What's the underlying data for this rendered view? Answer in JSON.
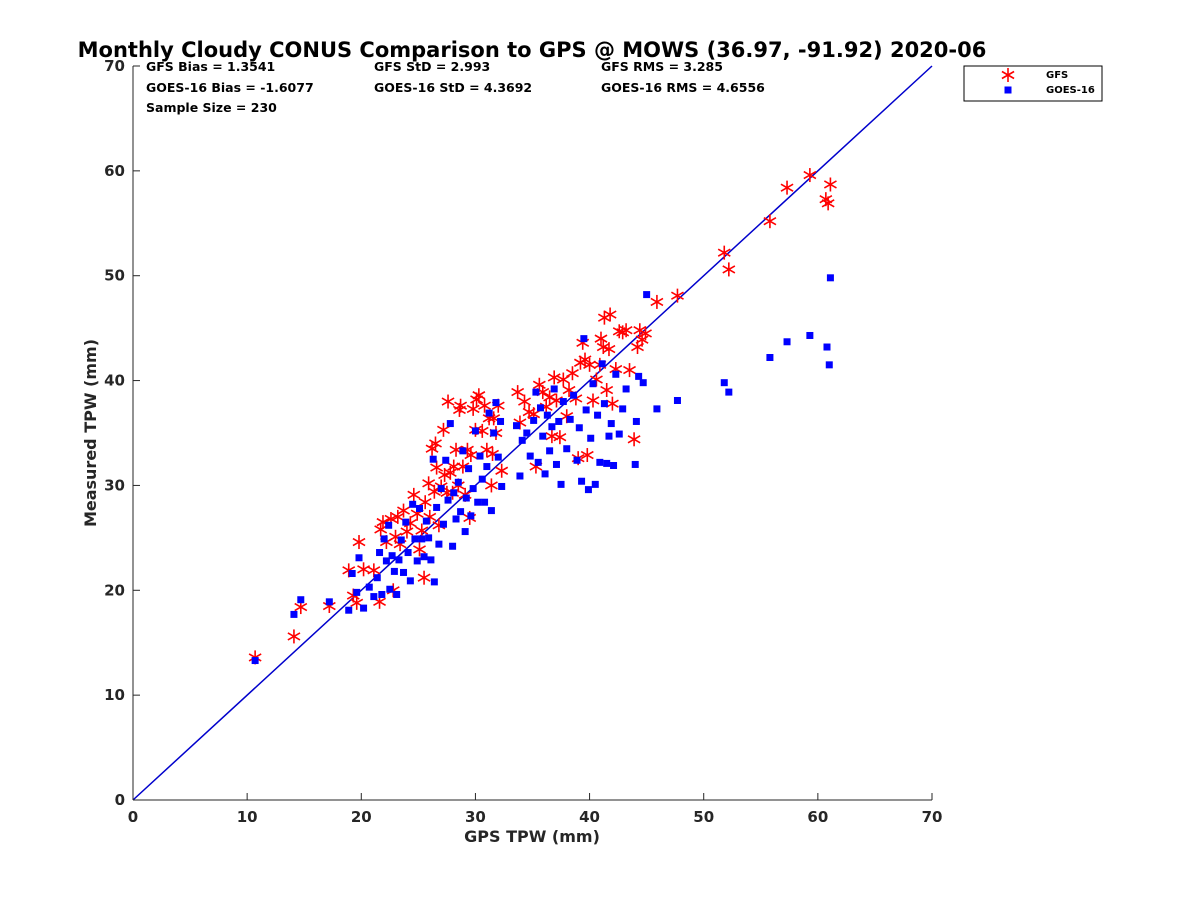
{
  "chart_data": {
    "type": "scatter",
    "title": "Monthly Cloudy CONUS Comparison to GPS @ MOWS (36.97, -91.92) 2020-06",
    "xlabel": "GPS TPW (mm)",
    "ylabel": "Measured TPW (mm)",
    "xlim": [
      0,
      70
    ],
    "ylim": [
      0,
      70
    ],
    "xticks": [
      "0",
      "10",
      "20",
      "30",
      "40",
      "50",
      "60",
      "70"
    ],
    "yticks": [
      "0",
      "10",
      "20",
      "30",
      "40",
      "50",
      "60",
      "70"
    ],
    "grid": false,
    "legend_position": "top-right outside",
    "stats": {
      "gfs_bias": "GFS Bias = 1.3541",
      "goes_bias": "GOES-16 Bias = -1.6077",
      "sample_size": "Sample Size = 230",
      "gfs_std": "GFS StD = 2.993",
      "goes_std": "GOES-16 StD = 4.3692",
      "gfs_rms": "GFS RMS = 3.285",
      "goes_rms": "GOES-16 RMS = 4.6556"
    },
    "reference_line": {
      "x": [
        0,
        70
      ],
      "y": [
        0,
        70
      ],
      "color": "#0000cc"
    },
    "series": [
      {
        "name": "GFS",
        "marker": "asterisk",
        "color": "#ff0000",
        "points": [
          [
            10.7,
            13.6
          ],
          [
            14.1,
            15.6
          ],
          [
            14.7,
            18.4
          ],
          [
            17.2,
            18.5
          ],
          [
            18.9,
            21.9
          ],
          [
            19.3,
            19.5
          ],
          [
            19.6,
            18.8
          ],
          [
            19.8,
            24.6
          ],
          [
            20.2,
            22.0
          ],
          [
            21.1,
            21.9
          ],
          [
            21.6,
            18.9
          ],
          [
            21.7,
            25.8
          ],
          [
            21.9,
            26.5
          ],
          [
            22.2,
            24.6
          ],
          [
            22.6,
            26.8
          ],
          [
            22.8,
            20.0
          ],
          [
            23.0,
            25.1
          ],
          [
            23.2,
            27.0
          ],
          [
            23.4,
            24.4
          ],
          [
            23.7,
            27.6
          ],
          [
            24.0,
            25.6
          ],
          [
            24.3,
            26.4
          ],
          [
            24.6,
            29.1
          ],
          [
            24.9,
            27.3
          ],
          [
            25.1,
            23.9
          ],
          [
            25.3,
            25.7
          ],
          [
            25.5,
            21.2
          ],
          [
            25.6,
            28.4
          ],
          [
            25.9,
            30.2
          ],
          [
            26.0,
            27.0
          ],
          [
            26.2,
            33.5
          ],
          [
            26.4,
            29.4
          ],
          [
            26.5,
            34.0
          ],
          [
            26.6,
            31.7
          ],
          [
            26.8,
            26.2
          ],
          [
            27.0,
            29.9
          ],
          [
            27.2,
            35.3
          ],
          [
            27.3,
            31.0
          ],
          [
            27.5,
            29.3
          ],
          [
            27.6,
            38.0
          ],
          [
            27.8,
            31.2
          ],
          [
            28.0,
            29.3
          ],
          [
            28.1,
            31.8
          ],
          [
            28.3,
            33.4
          ],
          [
            28.5,
            30.0
          ],
          [
            28.6,
            37.2
          ],
          [
            28.7,
            37.6
          ],
          [
            28.9,
            31.8
          ],
          [
            29.1,
            29.1
          ],
          [
            29.3,
            33.4
          ],
          [
            29.5,
            26.9
          ],
          [
            29.6,
            32.9
          ],
          [
            29.8,
            37.3
          ],
          [
            30.0,
            35.3
          ],
          [
            30.1,
            38.2
          ],
          [
            30.3,
            38.6
          ],
          [
            30.6,
            35.2
          ],
          [
            30.8,
            37.6
          ],
          [
            31.0,
            33.4
          ],
          [
            31.2,
            36.4
          ],
          [
            31.4,
            30.0
          ],
          [
            31.5,
            33.0
          ],
          [
            31.6,
            36.4
          ],
          [
            31.8,
            35.0
          ],
          [
            32.0,
            37.6
          ],
          [
            32.3,
            31.4
          ],
          [
            33.7,
            38.9
          ],
          [
            33.9,
            36.0
          ],
          [
            34.3,
            38.0
          ],
          [
            34.7,
            37.0
          ],
          [
            35.1,
            36.8
          ],
          [
            35.3,
            31.8
          ],
          [
            35.6,
            39.6
          ],
          [
            35.9,
            38.9
          ],
          [
            36.2,
            37.5
          ],
          [
            36.5,
            38.4
          ],
          [
            36.7,
            34.7
          ],
          [
            36.9,
            40.3
          ],
          [
            37.1,
            38.1
          ],
          [
            37.4,
            34.6
          ],
          [
            37.7,
            40.1
          ],
          [
            38.0,
            36.6
          ],
          [
            38.2,
            39.1
          ],
          [
            38.5,
            40.7
          ],
          [
            38.8,
            38.3
          ],
          [
            39.0,
            32.6
          ],
          [
            39.2,
            41.7
          ],
          [
            39.4,
            43.6
          ],
          [
            39.6,
            42.0
          ],
          [
            39.8,
            32.9
          ],
          [
            40.0,
            41.5
          ],
          [
            40.3,
            38.1
          ],
          [
            40.6,
            40.1
          ],
          [
            40.9,
            41.5
          ],
          [
            41.0,
            44.0
          ],
          [
            41.2,
            43.2
          ],
          [
            41.3,
            46.0
          ],
          [
            41.5,
            39.1
          ],
          [
            41.7,
            43.0
          ],
          [
            41.8,
            46.3
          ],
          [
            42.0,
            37.8
          ],
          [
            42.3,
            41.1
          ],
          [
            42.6,
            44.7
          ],
          [
            42.9,
            44.6
          ],
          [
            43.2,
            44.8
          ],
          [
            43.5,
            41.0
          ],
          [
            43.9,
            34.4
          ],
          [
            44.2,
            43.2
          ],
          [
            44.4,
            44.8
          ],
          [
            44.6,
            43.9
          ],
          [
            44.9,
            44.5
          ],
          [
            45.9,
            47.5
          ],
          [
            47.7,
            48.1
          ],
          [
            51.8,
            52.2
          ],
          [
            52.2,
            50.6
          ],
          [
            55.8,
            55.2
          ],
          [
            57.3,
            58.4
          ],
          [
            59.3,
            59.6
          ],
          [
            60.7,
            57.3
          ],
          [
            60.9,
            56.9
          ],
          [
            61.1,
            58.7
          ]
        ]
      },
      {
        "name": "GOES-16",
        "marker": "square",
        "color": "#0000ff",
        "points": [
          [
            10.7,
            13.3
          ],
          [
            14.1,
            17.7
          ],
          [
            14.7,
            19.1
          ],
          [
            17.2,
            18.9
          ],
          [
            18.9,
            18.1
          ],
          [
            19.2,
            21.6
          ],
          [
            19.6,
            19.8
          ],
          [
            19.8,
            23.1
          ],
          [
            20.2,
            18.3
          ],
          [
            20.7,
            20.3
          ],
          [
            21.1,
            19.4
          ],
          [
            21.4,
            21.2
          ],
          [
            21.6,
            23.6
          ],
          [
            21.8,
            19.6
          ],
          [
            22.0,
            24.9
          ],
          [
            22.2,
            22.8
          ],
          [
            22.4,
            26.2
          ],
          [
            22.5,
            20.1
          ],
          [
            22.7,
            23.3
          ],
          [
            22.9,
            21.8
          ],
          [
            23.1,
            19.6
          ],
          [
            23.3,
            22.9
          ],
          [
            23.5,
            24.8
          ],
          [
            23.7,
            21.7
          ],
          [
            23.9,
            26.5
          ],
          [
            24.1,
            23.6
          ],
          [
            24.3,
            20.9
          ],
          [
            24.5,
            28.2
          ],
          [
            24.7,
            24.9
          ],
          [
            24.9,
            22.8
          ],
          [
            25.1,
            27.8
          ],
          [
            25.3,
            24.9
          ],
          [
            25.5,
            23.2
          ],
          [
            25.7,
            26.6
          ],
          [
            25.9,
            25.0
          ],
          [
            26.1,
            22.9
          ],
          [
            26.3,
            32.5
          ],
          [
            26.4,
            20.8
          ],
          [
            26.6,
            27.9
          ],
          [
            26.8,
            24.4
          ],
          [
            27.0,
            29.7
          ],
          [
            27.2,
            26.3
          ],
          [
            27.4,
            32.4
          ],
          [
            27.6,
            28.6
          ],
          [
            27.8,
            35.9
          ],
          [
            28.0,
            24.2
          ],
          [
            28.1,
            29.3
          ],
          [
            28.3,
            26.8
          ],
          [
            28.5,
            30.3
          ],
          [
            28.7,
            27.5
          ],
          [
            28.9,
            33.3
          ],
          [
            29.1,
            25.6
          ],
          [
            29.2,
            28.8
          ],
          [
            29.4,
            31.6
          ],
          [
            29.6,
            27.1
          ],
          [
            29.8,
            29.7
          ],
          [
            30.0,
            35.2
          ],
          [
            30.2,
            28.4
          ],
          [
            30.4,
            32.8
          ],
          [
            30.6,
            30.6
          ],
          [
            30.8,
            28.4
          ],
          [
            31.0,
            31.8
          ],
          [
            31.2,
            36.9
          ],
          [
            31.4,
            27.6
          ],
          [
            31.6,
            35.0
          ],
          [
            31.8,
            37.9
          ],
          [
            32.0,
            32.7
          ],
          [
            32.2,
            36.1
          ],
          [
            32.3,
            29.9
          ],
          [
            33.6,
            35.7
          ],
          [
            33.9,
            30.9
          ],
          [
            34.1,
            34.3
          ],
          [
            34.5,
            35.0
          ],
          [
            34.8,
            32.8
          ],
          [
            35.1,
            36.2
          ],
          [
            35.3,
            38.9
          ],
          [
            35.5,
            32.2
          ],
          [
            35.7,
            37.4
          ],
          [
            35.9,
            34.7
          ],
          [
            36.1,
            31.1
          ],
          [
            36.3,
            36.7
          ],
          [
            36.5,
            33.3
          ],
          [
            36.7,
            35.6
          ],
          [
            36.9,
            39.2
          ],
          [
            37.1,
            32.0
          ],
          [
            37.3,
            36.1
          ],
          [
            37.5,
            30.1
          ],
          [
            37.7,
            38.0
          ],
          [
            38.0,
            33.5
          ],
          [
            38.3,
            36.3
          ],
          [
            38.6,
            38.6
          ],
          [
            38.9,
            32.4
          ],
          [
            39.1,
            35.5
          ],
          [
            39.3,
            30.4
          ],
          [
            39.5,
            44.0
          ],
          [
            39.7,
            37.2
          ],
          [
            39.9,
            29.6
          ],
          [
            40.1,
            34.5
          ],
          [
            40.3,
            39.7
          ],
          [
            40.5,
            30.1
          ],
          [
            40.7,
            36.7
          ],
          [
            40.9,
            32.2
          ],
          [
            41.1,
            41.6
          ],
          [
            41.3,
            37.8
          ],
          [
            41.5,
            32.1
          ],
          [
            41.7,
            34.7
          ],
          [
            41.9,
            35.9
          ],
          [
            42.1,
            31.9
          ],
          [
            42.3,
            40.6
          ],
          [
            42.6,
            34.9
          ],
          [
            42.9,
            37.3
          ],
          [
            43.2,
            39.2
          ],
          [
            44.0,
            32.0
          ],
          [
            44.1,
            36.1
          ],
          [
            44.3,
            40.4
          ],
          [
            44.7,
            39.8
          ],
          [
            45.0,
            48.2
          ],
          [
            45.9,
            37.3
          ],
          [
            47.7,
            38.1
          ],
          [
            51.8,
            39.8
          ],
          [
            52.2,
            38.9
          ],
          [
            55.8,
            42.2
          ],
          [
            57.3,
            43.7
          ],
          [
            59.3,
            44.3
          ],
          [
            60.8,
            43.2
          ],
          [
            61.0,
            41.5
          ],
          [
            61.1,
            49.8
          ]
        ]
      }
    ]
  }
}
